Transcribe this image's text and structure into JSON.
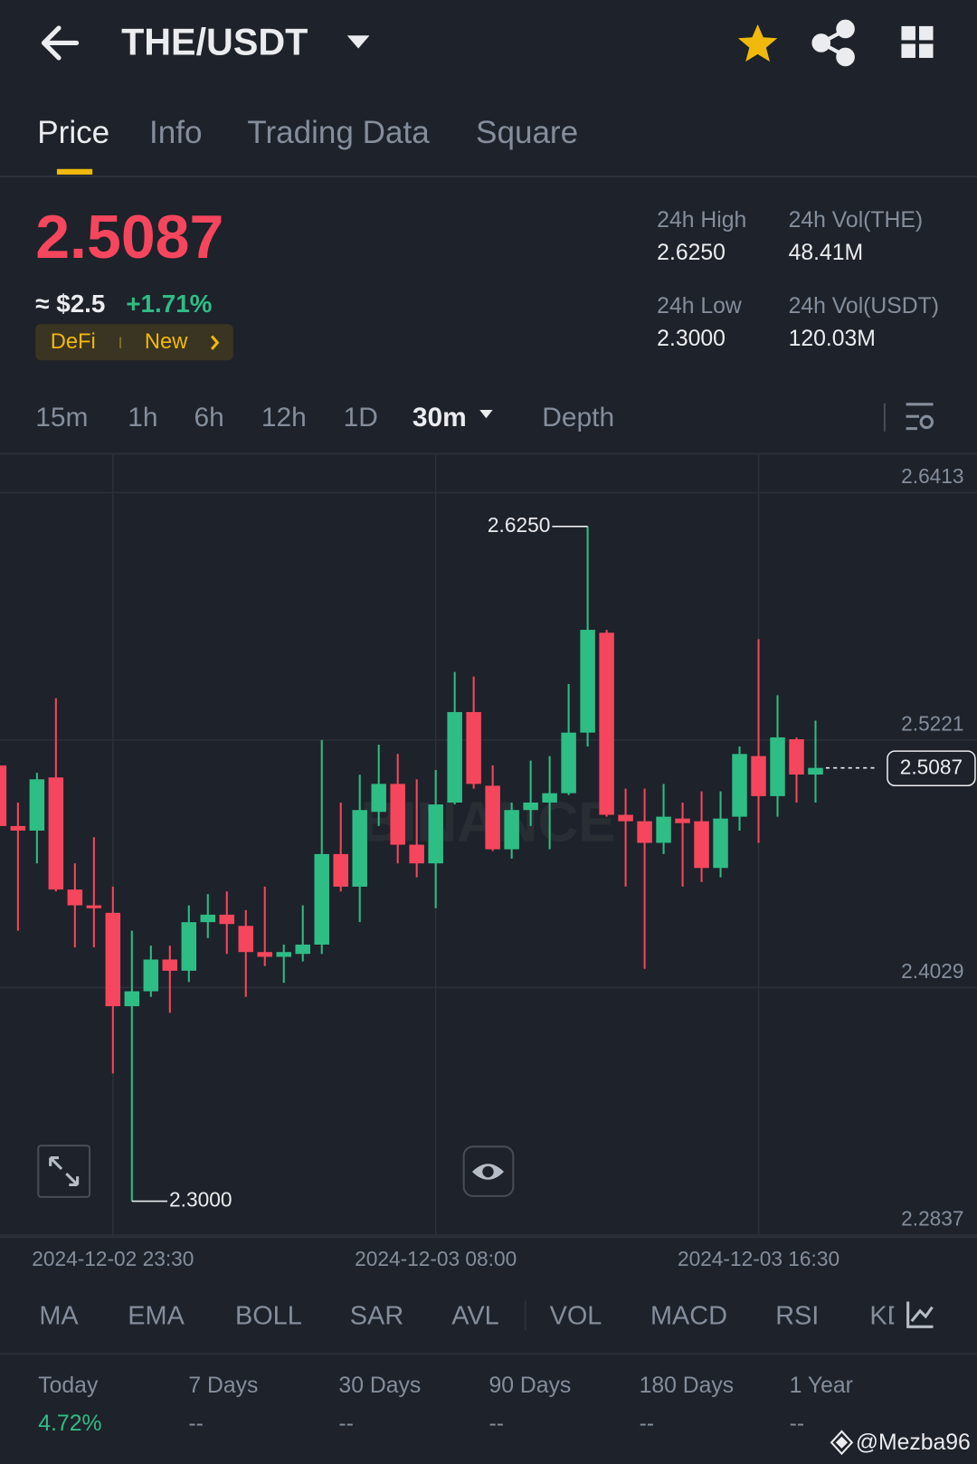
{
  "header": {
    "pair": "THE/USDT"
  },
  "tabs": [
    "Price",
    "Info",
    "Trading Data",
    "Square"
  ],
  "price": {
    "last": "2.5087",
    "approx": "≈ $2.5",
    "change": "+1.71%",
    "tags": [
      "DeFi",
      "New"
    ]
  },
  "stats": [
    {
      "label": "24h High",
      "value": "2.6250"
    },
    {
      "label": "24h Vol(THE)",
      "value": "48.41M"
    },
    {
      "label": "24h Low",
      "value": "2.3000"
    },
    {
      "label": "24h Vol(USDT)",
      "value": "120.03M"
    }
  ],
  "intervals": [
    "15m",
    "1h",
    "6h",
    "12h",
    "1D",
    "30m",
    "Depth"
  ],
  "indicators": [
    "MA",
    "EMA",
    "BOLL",
    "SAR",
    "AVL",
    "VOL",
    "MACD",
    "RSI",
    "KD"
  ],
  "performance": [
    {
      "period": "Today",
      "value": "4.72%"
    },
    {
      "period": "7 Days",
      "value": "--"
    },
    {
      "period": "30 Days",
      "value": "--"
    },
    {
      "period": "90 Days",
      "value": "--"
    },
    {
      "period": "180 Days",
      "value": "--"
    },
    {
      "period": "1 Year",
      "value": "--"
    }
  ],
  "credit": "@Mezba96",
  "chart_data": {
    "type": "candlestick",
    "watermark": "BINANCE",
    "up_color": "#2ebd85",
    "down_color": "#f6465d",
    "grid": true,
    "categories": [
      null,
      null,
      null,
      null,
      null,
      null,
      "2024-12-02 23:30",
      null,
      null,
      null,
      null,
      null,
      null,
      null,
      null,
      null,
      null,
      null,
      null,
      null,
      null,
      null,
      null,
      "2024-12-03 08:00",
      null,
      null,
      null,
      null,
      null,
      null,
      null,
      null,
      null,
      null,
      null,
      null,
      null,
      null,
      null,
      null,
      "2024-12-03 16:30",
      null,
      null,
      null
    ],
    "open": [
      2.5099,
      2.4807,
      2.4785,
      2.5041,
      2.4501,
      2.4425,
      2.4389,
      2.3939,
      2.4011,
      2.4164,
      2.411,
      2.4344,
      2.438,
      2.4326,
      2.42,
      2.4177,
      2.4191,
      2.4236,
      2.4672,
      2.4515,
      2.4875,
      2.501,
      2.4717,
      2.4627,
      2.492,
      2.5356,
      2.5001,
      2.4695,
      2.4884,
      2.492,
      2.4965,
      2.5257,
      2.5738,
      2.4861,
      2.483,
      2.4726,
      2.4843,
      2.483,
      2.4605,
      2.4852,
      2.5144,
      2.4951,
      2.5225,
      2.5055
    ],
    "high": [
      2.5504,
      2.492,
      2.5063,
      2.5423,
      2.4627,
      2.4753,
      2.4515,
      2.4303,
      2.4231,
      2.4231,
      2.4425,
      2.4479,
      2.4492,
      2.4402,
      2.4515,
      2.4236,
      2.4425,
      2.5221,
      2.492,
      2.5054,
      2.5199,
      2.5154,
      2.5032,
      2.5077,
      2.5549,
      2.5527,
      2.5099,
      2.492,
      2.5122,
      2.5144,
      2.5491,
      2.625,
      2.5752,
      2.4987,
      2.4987,
      2.501,
      2.492,
      2.4974,
      2.4974,
      2.519,
      2.5707,
      2.5437,
      2.5234,
      2.5315
    ],
    "low": [
      2.4672,
      2.4303,
      2.4627,
      2.4492,
      2.4222,
      2.4222,
      2.3615,
      2.3,
      2.3984,
      2.3907,
      2.4056,
      2.4267,
      2.4191,
      2.3984,
      2.4132,
      2.4052,
      2.4155,
      2.4191,
      2.4492,
      2.4344,
      2.4807,
      2.4627,
      2.456,
      2.4411,
      2.4911,
      2.4987,
      2.4686,
      2.465,
      2.4807,
      2.4695,
      2.4956,
      2.519,
      2.4852,
      2.4515,
      2.4119,
      2.4672,
      2.4515,
      2.4537,
      2.456,
      2.4785,
      2.4726,
      2.4852,
      2.492,
      2.492
    ],
    "close": [
      2.4807,
      2.4785,
      2.5032,
      2.4501,
      2.4425,
      2.4411,
      2.3939,
      2.4011,
      2.4164,
      2.411,
      2.4344,
      2.438,
      2.4335,
      2.42,
      2.4177,
      2.42,
      2.4236,
      2.4672,
      2.4515,
      2.4884,
      2.501,
      2.4717,
      2.4627,
      2.4911,
      2.5356,
      2.501,
      2.4695,
      2.4884,
      2.492,
      2.4965,
      2.5257,
      2.5752,
      2.4861,
      2.483,
      2.4726,
      2.4852,
      2.4821,
      2.4605,
      2.4843,
      2.5154,
      2.4951,
      2.5234,
      2.5055,
      2.5087
    ],
    "ylim": [
      2.28,
      2.66
    ],
    "yticks": [
      2.6413,
      2.5221,
      2.4029,
      2.2837
    ],
    "annotations": [
      {
        "value": 2.625,
        "label": "2.6250"
      },
      {
        "value": 2.3,
        "label": "2.3000"
      }
    ],
    "last_price": 2.5087
  }
}
